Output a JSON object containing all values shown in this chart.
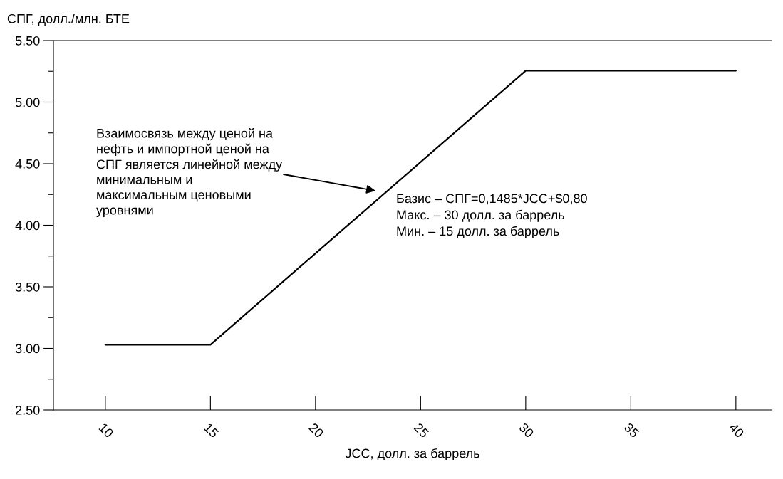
{
  "chart_data": {
    "type": "line",
    "xlabel": "JCC, долл. за баррель",
    "ylabel": "СПГ, долл./млн. БТЕ",
    "x": [
      10,
      15,
      30,
      40
    ],
    "series": [
      {
        "color": "#000000",
        "values": [
          3.03,
          3.03,
          5.255,
          5.255
        ]
      }
    ],
    "xlim": [
      7.53,
      41.7
    ],
    "xticks": [
      10,
      15,
      20,
      25,
      30,
      35,
      40
    ],
    "ylim": [
      2.5,
      5.5
    ],
    "yticks": [
      {
        "value": 2.5,
        "label": "2.50"
      },
      {
        "value": 2.75,
        "label": null
      },
      {
        "value": 3.0,
        "label": "3.00"
      },
      {
        "value": 3.25,
        "label": null
      },
      {
        "value": 3.5,
        "label": "3.50"
      },
      {
        "value": 3.75,
        "label": null
      },
      {
        "value": 4.0,
        "label": "4.00"
      },
      {
        "value": 4.25,
        "label": null
      },
      {
        "value": 4.5,
        "label": "4.50"
      },
      {
        "value": 4.75,
        "label": null
      },
      {
        "value": 5.0,
        "label": "5.00"
      },
      {
        "value": 5.25,
        "label": null
      },
      {
        "value": 5.5,
        "label": "5.50"
      }
    ],
    "grid": false,
    "legend": false,
    "marker": "none",
    "line_style": "solid",
    "annotations": [
      "Взаимосвязь между ценой на\nнефть и импортной ценой на\nСПГ является линейной между\nминимальным и\nмаксимальным ценовыми\nуровнями",
      "Базис – СПГ=0,1485*JCC+$0,80\nМакс. – 30 долл. за баррель\nМин. – 15 долл. за баррель"
    ]
  }
}
